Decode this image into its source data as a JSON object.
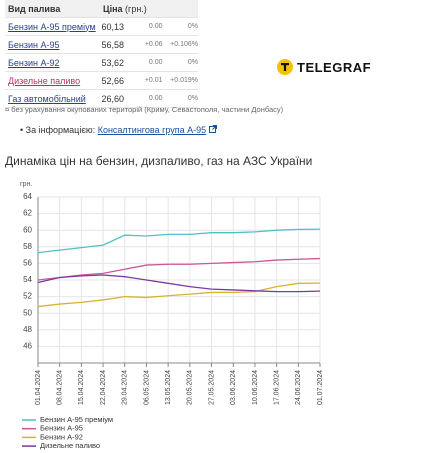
{
  "table": {
    "header": {
      "fuel": "Вид палива",
      "price": "Ціна",
      "unit": "(грн.)"
    },
    "rows": [
      [
        "Бензин А-95 преміум",
        "60,13",
        "0.00",
        "0%"
      ],
      [
        "Бензин А-95",
        "56,58",
        "+0.06",
        "+0.106%"
      ],
      [
        "Бензин А-92",
        "53,62",
        "0.00",
        "0%"
      ],
      [
        "Дизельне паливо",
        "52,66",
        "+0.01",
        "+0.019%"
      ],
      [
        "Газ автомобільний",
        "26,60",
        "0.00",
        "0%"
      ]
    ]
  },
  "logo": "TELEGRAF",
  "note": "без урахування окупованих територій (Криму, Севастополя, частини Донбасу)",
  "source": {
    "label": "За інформацією:",
    "link": "Консалтингова група А-95"
  },
  "chart_data": {
    "type": "line",
    "title": "Динаміка цін на бензин, дизпаливо, газ на АЗС України",
    "y_label": "грн.",
    "categories": [
      "01.04.2024",
      "08.04.2024",
      "15.04.2024",
      "22.04.2024",
      "29.04.2024",
      "06.05.2024",
      "13.05.2024",
      "20.05.2024",
      "27.05.2024",
      "03.06.2024",
      "10.06.2024",
      "17.06.2024",
      "24.06.2024",
      "01.07.2024"
    ],
    "series": [
      {
        "name": "Бензин А-95 преміум",
        "color": "#4fc1c6",
        "values": [
          57.3,
          57.6,
          57.9,
          58.2,
          59.4,
          59.3,
          59.5,
          59.5,
          59.7,
          59.7,
          59.8,
          60.0,
          60.1,
          60.13
        ]
      },
      {
        "name": "Бензин А-95",
        "color": "#c8589a",
        "values": [
          54.0,
          54.3,
          54.6,
          54.8,
          55.3,
          55.8,
          55.9,
          55.9,
          56.0,
          56.1,
          56.2,
          56.4,
          56.5,
          56.58
        ]
      },
      {
        "name": "Бензин А-92",
        "color": "#d7b334",
        "values": [
          50.8,
          51.1,
          51.3,
          51.6,
          52.0,
          51.9,
          52.1,
          52.3,
          52.5,
          52.5,
          52.6,
          53.2,
          53.6,
          53.62
        ]
      },
      {
        "name": "Дизельне паливо",
        "color": "#7b3aa3",
        "values": [
          53.7,
          54.3,
          54.5,
          54.6,
          54.4,
          54.0,
          53.6,
          53.2,
          52.9,
          52.8,
          52.7,
          52.6,
          52.6,
          52.66
        ]
      }
    ],
    "ylim": [
      44,
      64
    ],
    "yticks": [
      46,
      48,
      50,
      52,
      54,
      56,
      58,
      60,
      62,
      64
    ],
    "grid": true
  }
}
